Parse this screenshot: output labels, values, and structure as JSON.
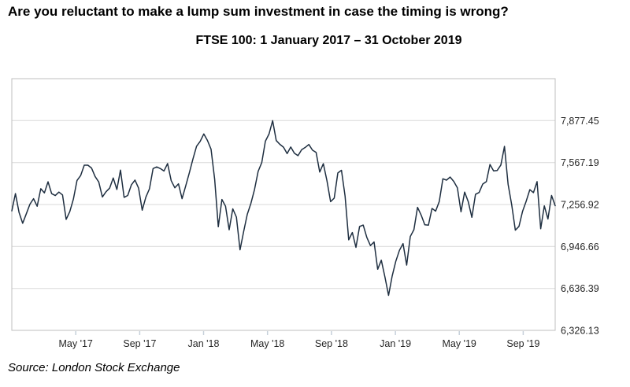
{
  "header": {
    "title": "Are you reluctant to make a lump sum investment in case the timing is wrong?",
    "subtitle": "FTSE 100: 1 January 2017 – 31 October 2019"
  },
  "footer": {
    "source": "Source: London Stock Exchange"
  },
  "chart_data": {
    "type": "line",
    "title": "FTSE 100: 1 January 2017 – 31 October 2019",
    "series_name": "FTSE 100",
    "line_color": "#1e2e40",
    "grid_color": "#d9d9d9",
    "border_color": "#bfbfbf",
    "tick_color": "#c6d0da",
    "label_color": "#262626",
    "legend": "none",
    "grid": "horizontal-only",
    "y_axis": {
      "side": "right",
      "min": 6326.13,
      "max": 8187.71,
      "ticks": [
        {
          "value": 7877.45,
          "label": "7,877.45"
        },
        {
          "value": 7567.19,
          "label": "7,567.19"
        },
        {
          "value": 7256.92,
          "label": "7,256.92"
        },
        {
          "value": 6946.66,
          "label": "6,946.66"
        },
        {
          "value": 6636.39,
          "label": "6,636.39"
        },
        {
          "value": 6326.13,
          "label": "6,326.13"
        }
      ]
    },
    "x_axis": {
      "unit": "months since 1 January 2017",
      "range": [
        0,
        34
      ],
      "ticks": [
        {
          "month": 4,
          "label": "May '17"
        },
        {
          "month": 8,
          "label": "Sep '17"
        },
        {
          "month": 12,
          "label": "Jan '18"
        },
        {
          "month": 16,
          "label": "May '18"
        },
        {
          "month": 20,
          "label": "Sep '18"
        },
        {
          "month": 24,
          "label": "Jan '19"
        },
        {
          "month": 28,
          "label": "May '19"
        },
        {
          "month": 32,
          "label": "Sep '19"
        }
      ]
    },
    "sampling": "weekly closes, 1 Jan 2017 – 31 Oct 2019 (estimated from plot)",
    "values": [
      7210,
      7338,
      7198,
      7118,
      7188,
      7259,
      7300,
      7244,
      7374,
      7343,
      7425,
      7337,
      7323,
      7349,
      7328,
      7147,
      7204,
      7297,
      7435,
      7471,
      7548,
      7548,
      7527,
      7464,
      7424,
      7313,
      7351,
      7378,
      7453,
      7368,
      7512,
      7310,
      7324,
      7402,
      7438,
      7378,
      7215,
      7311,
      7373,
      7523,
      7535,
      7523,
      7505,
      7560,
      7433,
      7381,
      7410,
      7300,
      7394,
      7491,
      7593,
      7688,
      7724,
      7779,
      7731,
      7666,
      7443,
      7092,
      7294,
      7244,
      7070,
      7225,
      7164,
      6922,
      7057,
      7184,
      7265,
      7368,
      7502,
      7567,
      7725,
      7778,
      7877,
      7730,
      7702,
      7681,
      7634,
      7682,
      7637,
      7618,
      7662,
      7679,
      7701,
      7659,
      7642,
      7497,
      7559,
      7432,
      7278,
      7304,
      7490,
      7510,
      7319,
      6996,
      7050,
      6940,
      7094,
      7105,
      7014,
      6953,
      6980,
      6778,
      6845,
      6721,
      6585,
      6728,
      6837,
      6918,
      6968,
      6809,
      7020,
      7071,
      7236,
      7179,
      7107,
      7104,
      7228,
      7208,
      7279,
      7447,
      7437,
      7460,
      7428,
      7381,
      7203,
      7349,
      7278,
      7162,
      7332,
      7346,
      7408,
      7426,
      7553,
      7506,
      7509,
      7549,
      7687,
      7407,
      7254,
      7067,
      7095,
      7207,
      7282,
      7367,
      7345,
      7426,
      7078,
      7247,
      7150,
      7324,
      7248
    ]
  }
}
